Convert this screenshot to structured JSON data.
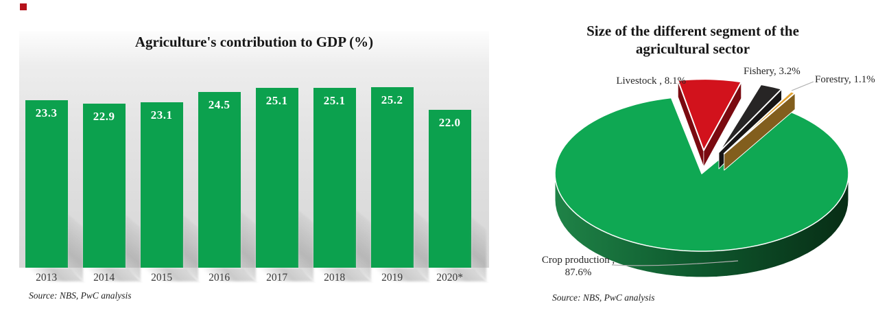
{
  "slide": {
    "background": "#ffffff",
    "corner_marker_color": "#b5121b"
  },
  "left_chart": {
    "title": "Agriculture's contribution to GDP (%)",
    "source": "Source: NBS, PwC analysis"
  },
  "right_chart": {
    "title_line1": "Size of the different segment of the",
    "title_line2": "agricultural sector",
    "callout_livestock": "Livestock , 8.1%",
    "callout_fishery": "Fishery, 3.2%",
    "callout_forestry": "Forestry, 1.1%",
    "callout_crop_line1": "Crop production ,",
    "callout_crop_line2": "87.6%",
    "source": "Source: NBS, PwC analysis"
  },
  "chart_data": [
    {
      "type": "bar",
      "title": "Agriculture's contribution to GDP (%)",
      "categories": [
        "2013",
        "2014",
        "2015",
        "2016",
        "2017",
        "2018",
        "2019",
        "2020*"
      ],
      "values": [
        23.3,
        22.9,
        23.1,
        24.5,
        25.1,
        25.1,
        25.2,
        22.0
      ],
      "value_labels": [
        "23.3",
        "22.9",
        "23.1",
        "24.5",
        "25.1",
        "25.1",
        "25.2",
        "22.0"
      ],
      "bar_color": "#0ca14e",
      "value_label_color": "#ffffff",
      "xlabel": "",
      "ylabel": "",
      "ylim": [
        0,
        33
      ],
      "grid": false,
      "legend": false,
      "source": "Source: NBS, PwC analysis"
    },
    {
      "type": "pie",
      "style": "3d-exploded",
      "title": "Size of the different segment of the agricultural sector",
      "segments": [
        {
          "label": "Crop production",
          "value": 87.6,
          "color": "#0fa853",
          "exploded": false
        },
        {
          "label": "Livestock",
          "value": 8.1,
          "color": "#d2121c",
          "exploded": true
        },
        {
          "label": "Fishery",
          "value": 3.2,
          "color": "#272525",
          "exploded": true
        },
        {
          "label": "Forestry",
          "value": 1.1,
          "color": "#e0a232",
          "exploded": true
        }
      ],
      "legend": false,
      "source": "Source: NBS, PwC analysis"
    }
  ]
}
